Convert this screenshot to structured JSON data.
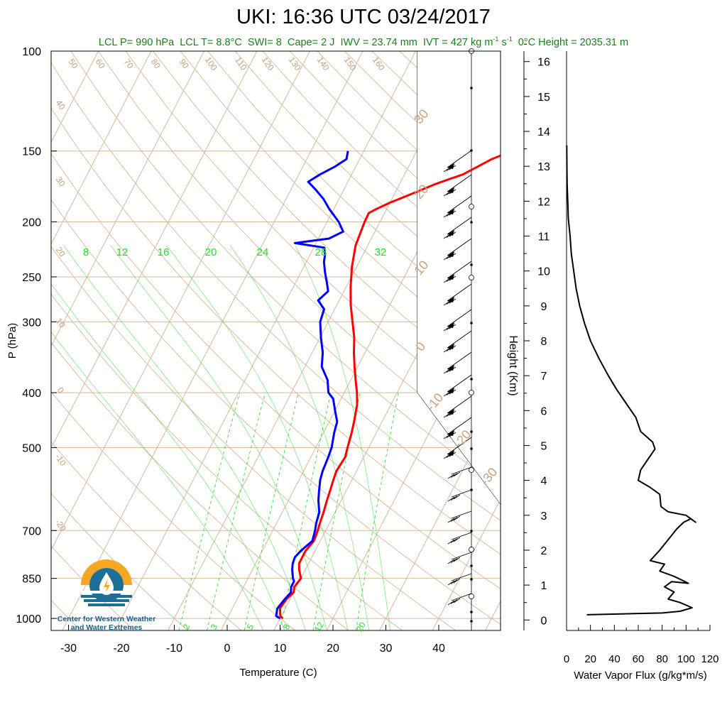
{
  "title": "UKI: 16:36 UTC 03/24/2017",
  "subtitle": {
    "lcl_p": "LCL P= 990 hPa",
    "lcl_t": "LCL T= 8.8°C",
    "swi": "SWI= 8",
    "cape": "Cape= 2 J",
    "iwv": "IWV = 23.74 mm",
    "ivt_prefix": "IVT = 427 kg m",
    "ivt_exp1": "-1",
    "ivt_mid": " s",
    "ivt_exp2": "-1",
    "zero_c": "0°C Height = 2035.31 m"
  },
  "logo": {
    "line1": "Center for Western Weather",
    "line2": "and Water Extremes"
  },
  "colors": {
    "temperature": "#ff0000",
    "dewpoint": "#0000ff",
    "isotherm": "#d8b898",
    "dry_adiabat": "#d8b898",
    "mixing_ratio": "#33dd33",
    "subtitle": "#1a7f1a",
    "logo_orange": "#f5a623",
    "logo_blue": "#1d6f95"
  },
  "chart_data": [
    {
      "type": "line",
      "name": "skew-t",
      "xlabel": "Temperature (C)",
      "ylabel": "P (hPa)",
      "xlim": [
        -35,
        50
      ],
      "ylim": [
        1050,
        100
      ],
      "y_scale": "log",
      "x_ticks": [
        -30,
        -20,
        -10,
        0,
        10,
        20,
        30,
        40
      ],
      "y_ticks": [
        100,
        150,
        200,
        250,
        300,
        400,
        500,
        700,
        850,
        1000
      ],
      "mixing_ratio_top_labels": [
        8,
        12,
        16,
        20,
        24,
        28,
        32
      ],
      "mixing_ratio_bottom_labels": [
        2,
        3,
        5,
        8,
        12,
        20
      ],
      "adiabat_top_labels": [
        50,
        60,
        70,
        80,
        90,
        100,
        110,
        120,
        130,
        140,
        150,
        160
      ],
      "left_side_labels": [
        40,
        30,
        20,
        10,
        0,
        -10,
        -20
      ],
      "right_side_labels": [
        30,
        20,
        10,
        0,
        -10,
        -20,
        -30
      ],
      "series": [
        {
          "role": "temperature",
          "points": [
            [
              1000,
              10.5
            ],
            [
              990,
              9.8
            ],
            [
              960,
              9.0
            ],
            [
              925,
              9.3
            ],
            [
              900,
              10.0
            ],
            [
              880,
              9.6
            ],
            [
              850,
              10.0
            ],
            [
              820,
              8.8
            ],
            [
              800,
              8.2
            ],
            [
              780,
              8.2
            ],
            [
              760,
              8.2
            ],
            [
              730,
              8.8
            ],
            [
              700,
              8.5
            ],
            [
              680,
              8.2
            ],
            [
              650,
              7.8
            ],
            [
              620,
              7.3
            ],
            [
              600,
              7.0
            ],
            [
              570,
              6.5
            ],
            [
              550,
              6.2
            ],
            [
              520,
              6.5
            ],
            [
              500,
              6.0
            ],
            [
              470,
              5.3
            ],
            [
              450,
              4.7
            ],
            [
              420,
              3.6
            ],
            [
              400,
              2.4
            ],
            [
              380,
              0.9
            ],
            [
              360,
              -0.6
            ],
            [
              340,
              -2.1
            ],
            [
              320,
              -3.5
            ],
            [
              300,
              -5.4
            ],
            [
              280,
              -7.4
            ],
            [
              260,
              -9.2
            ],
            [
              240,
              -10.9
            ],
            [
              220,
              -12.3
            ],
            [
              200,
              -12.9
            ],
            [
              193,
              -13.0
            ],
            [
              190,
              -12.0
            ],
            [
              185,
              -10.0
            ],
            [
              180,
              -7.5
            ],
            [
              176,
              -5.5
            ],
            [
              172,
              -3.5
            ],
            [
              168,
              -1.0
            ],
            [
              165,
              1.0
            ],
            [
              160,
              3.0
            ],
            [
              155,
              5.0
            ],
            [
              150,
              8.0
            ]
          ]
        },
        {
          "role": "dewpoint",
          "points": [
            [
              1000,
              10.0
            ],
            [
              990,
              9.0
            ],
            [
              960,
              8.5
            ],
            [
              925,
              9.0
            ],
            [
              900,
              9.5
            ],
            [
              880,
              9.0
            ],
            [
              860,
              9.0
            ],
            [
              850,
              8.5
            ],
            [
              820,
              7.5
            ],
            [
              800,
              7.0
            ],
            [
              780,
              6.8
            ],
            [
              760,
              7.3
            ],
            [
              730,
              8.5
            ],
            [
              700,
              8.0
            ],
            [
              680,
              7.5
            ],
            [
              650,
              7.0
            ],
            [
              620,
              5.7
            ],
            [
              600,
              5.0
            ],
            [
              570,
              4.0
            ],
            [
              550,
              3.6
            ],
            [
              520,
              3.3
            ],
            [
              500,
              3.0
            ],
            [
              470,
              2.0
            ],
            [
              450,
              1.5
            ],
            [
              430,
              0.0
            ],
            [
              410,
              -1.5
            ],
            [
              400,
              -3.0
            ],
            [
              380,
              -4.4
            ],
            [
              360,
              -6.8
            ],
            [
              340,
              -8.0
            ],
            [
              320,
              -9.8
            ],
            [
              300,
              -11.5
            ],
            [
              285,
              -12.0
            ],
            [
              275,
              -14.0
            ],
            [
              265,
              -13.0
            ],
            [
              255,
              -14.2
            ],
            [
              245,
              -15.5
            ],
            [
              235,
              -16.7
            ],
            [
              228,
              -17.2
            ],
            [
              222,
              -18.0
            ],
            [
              218,
              -24.0
            ],
            [
              214,
              -18.0
            ],
            [
              208,
              -16.0
            ],
            [
              200,
              -17.8
            ],
            [
              190,
              -20.8
            ],
            [
              182,
              -23.0
            ],
            [
              175,
              -25.5
            ],
            [
              170,
              -27.5
            ],
            [
              165,
              -26.0
            ],
            [
              160,
              -24.0
            ],
            [
              155,
              -22.5
            ],
            [
              150,
              -23.0
            ]
          ]
        }
      ]
    },
    {
      "type": "line",
      "name": "water-vapor-flux",
      "xlabel": "Water Vapor Flux (g/kg*m/s)",
      "ylabel": "Height (Km)",
      "xlim": [
        0,
        120
      ],
      "ylim": [
        -0.3,
        16.3
      ],
      "x_ticks": [
        0,
        20,
        40,
        60,
        80,
        100,
        120
      ],
      "y_ticks": [
        0,
        1,
        2,
        3,
        4,
        5,
        6,
        7,
        8,
        9,
        10,
        11,
        12,
        13,
        14,
        15,
        16
      ],
      "points": [
        [
          17,
          0.15
        ],
        [
          80,
          0.2
        ],
        [
          95,
          0.25
        ],
        [
          105,
          0.35
        ],
        [
          95,
          0.5
        ],
        [
          85,
          0.6
        ],
        [
          90,
          0.8
        ],
        [
          82,
          0.95
        ],
        [
          88,
          1.1
        ],
        [
          102,
          1.05
        ],
        [
          90,
          1.25
        ],
        [
          78,
          1.4
        ],
        [
          82,
          1.6
        ],
        [
          70,
          1.7
        ],
        [
          78,
          2.0
        ],
        [
          85,
          2.3
        ],
        [
          92,
          2.6
        ],
        [
          98,
          2.8
        ],
        [
          104,
          2.9
        ],
        [
          108,
          2.8
        ],
        [
          100,
          3.0
        ],
        [
          85,
          3.1
        ],
        [
          79,
          3.25
        ],
        [
          78,
          3.6
        ],
        [
          70,
          3.8
        ],
        [
          60,
          4.0
        ],
        [
          62,
          4.3
        ],
        [
          68,
          4.6
        ],
        [
          74,
          4.9
        ],
        [
          72,
          5.1
        ],
        [
          62,
          5.4
        ],
        [
          58,
          5.8
        ],
        [
          50,
          6.2
        ],
        [
          42,
          6.6
        ],
        [
          35,
          7.0
        ],
        [
          27,
          7.5
        ],
        [
          20,
          8.0
        ],
        [
          15,
          8.5
        ],
        [
          11,
          9.0
        ],
        [
          8,
          9.5
        ],
        [
          6,
          10.0
        ],
        [
          4,
          10.5
        ],
        [
          3,
          11.0
        ],
        [
          1.5,
          11.5
        ],
        [
          1,
          12.0
        ],
        [
          0.5,
          12.5
        ],
        [
          0.3,
          13.0
        ],
        [
          0.2,
          13.6
        ]
      ]
    }
  ]
}
